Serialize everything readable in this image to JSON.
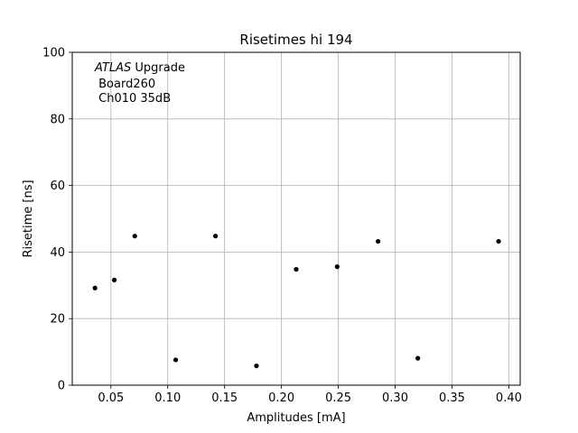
{
  "chart_data": {
    "type": "scatter",
    "title": "Risetimes hi 194",
    "xlabel": "Amplitudes [mA]",
    "ylabel": "Risetime [ns]",
    "xlim": [
      0.016,
      0.41
    ],
    "ylim": [
      0,
      100
    ],
    "xticks": [
      "0.05",
      "0.10",
      "0.15",
      "0.20",
      "0.25",
      "0.30",
      "0.35",
      "0.40"
    ],
    "xtick_values": [
      0.05,
      0.1,
      0.15,
      0.2,
      0.25,
      0.3,
      0.35,
      0.4
    ],
    "yticks": [
      "0",
      "20",
      "40",
      "60",
      "80",
      "100"
    ],
    "ytick_values": [
      0,
      20,
      40,
      60,
      80,
      100
    ],
    "grid": true,
    "marker_color": "#000000",
    "grid_color": "#b0b0b0",
    "points": [
      {
        "x": 0.036,
        "y": 29.2
      },
      {
        "x": 0.053,
        "y": 31.6
      },
      {
        "x": 0.071,
        "y": 44.8
      },
      {
        "x": 0.107,
        "y": 7.6
      },
      {
        "x": 0.142,
        "y": 44.8
      },
      {
        "x": 0.178,
        "y": 5.8
      },
      {
        "x": 0.213,
        "y": 34.8
      },
      {
        "x": 0.249,
        "y": 35.6
      },
      {
        "x": 0.285,
        "y": 43.2
      },
      {
        "x": 0.32,
        "y": 8.1
      },
      {
        "x": 0.391,
        "y": 43.2
      }
    ],
    "annotation": {
      "italic": "ATLAS",
      "rest": " Upgrade",
      "line2": " Board260",
      "line3": " Ch010 35dB"
    }
  }
}
